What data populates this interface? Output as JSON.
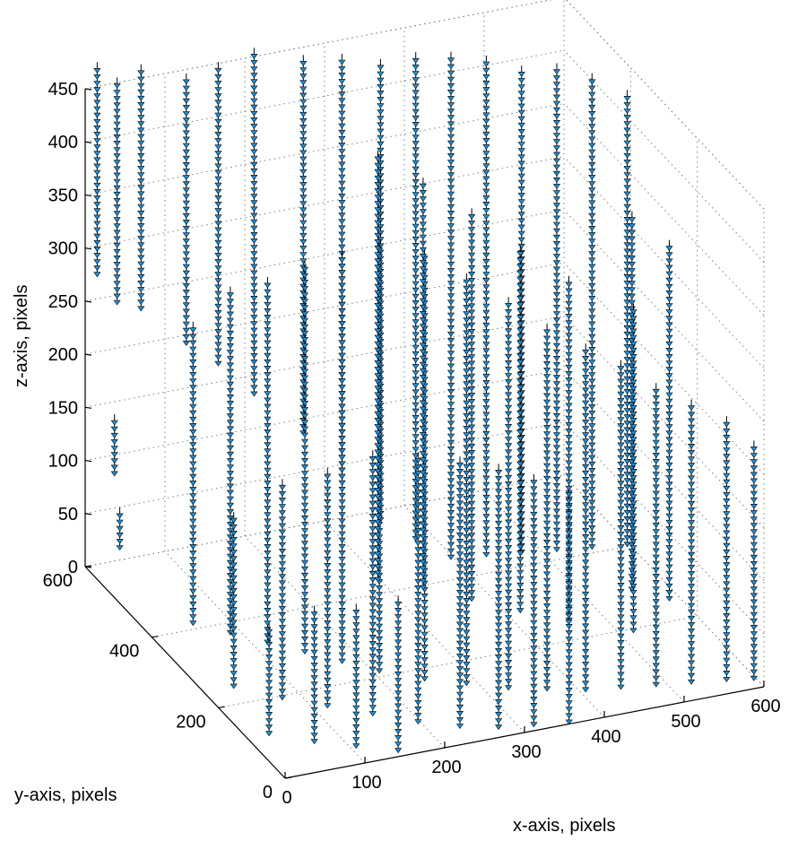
{
  "chart_data": {
    "type": "quiver3d",
    "title": "",
    "xlabel": "x-axis, pixels",
    "ylabel": "y-axis, pixels",
    "zlabel": "z-axis, pixels",
    "xlim": [
      0,
      600
    ],
    "ylim": [
      0,
      600
    ],
    "zlim": [
      0,
      450
    ],
    "xticks": [
      "0",
      "100",
      "200",
      "300",
      "400",
      "500",
      "600"
    ],
    "yticks": [
      "0",
      "200",
      "400",
      "600"
    ],
    "zticks": [
      "0",
      "50",
      "100",
      "150",
      "200",
      "250",
      "300",
      "350",
      "400",
      "450"
    ],
    "grid": true,
    "arrow_color": "#1f8fd8",
    "arrow_edge_color": "#000000",
    "trajectories": [
      {
        "x": 15,
        "y": 600,
        "z": [
          275,
          470
        ]
      },
      {
        "x": 40,
        "y": 600,
        "z": [
          245,
          450
        ]
      },
      {
        "x": 70,
        "y": 600,
        "z": [
          235,
          460
        ]
      },
      {
        "x": 110,
        "y": 560,
        "z": [
          210,
          460
        ]
      },
      {
        "x": 150,
        "y": 560,
        "z": [
          185,
          465
        ]
      },
      {
        "x": 195,
        "y": 560,
        "z": [
          150,
          470
        ]
      },
      {
        "x": 20,
        "y": 560,
        "z": [
          100,
          150
        ]
      },
      {
        "x": 10,
        "y": 520,
        "z": [
          45,
          75
        ]
      },
      {
        "x": 240,
        "y": 520,
        "z": [
          120,
          470
        ]
      },
      {
        "x": 280,
        "y": 500,
        "z": [
          80,
          470
        ]
      },
      {
        "x": 320,
        "y": 480,
        "z": [
          40,
          470
        ]
      },
      {
        "x": 360,
        "y": 470,
        "z": [
          20,
          470
        ]
      },
      {
        "x": 400,
        "y": 460,
        "z": [
          0,
          470
        ]
      },
      {
        "x": 440,
        "y": 450,
        "z": [
          0,
          465
        ]
      },
      {
        "x": 480,
        "y": 440,
        "z": [
          0,
          455
        ]
      },
      {
        "x": 520,
        "y": 430,
        "z": [
          0,
          450
        ]
      },
      {
        "x": 560,
        "y": 420,
        "z": [
          0,
          440
        ]
      },
      {
        "x": 600,
        "y": 410,
        "z": [
          0,
          420
        ]
      },
      {
        "x": 60,
        "y": 420,
        "z": [
          0,
          280
        ]
      },
      {
        "x": 90,
        "y": 380,
        "z": [
          0,
          320
        ]
      },
      {
        "x": 120,
        "y": 340,
        "z": [
          0,
          340
        ]
      },
      {
        "x": 150,
        "y": 300,
        "z": [
          0,
          360
        ]
      },
      {
        "x": 180,
        "y": 260,
        "z": [
          0,
          380
        ]
      },
      {
        "x": 210,
        "y": 220,
        "z": [
          0,
          400
        ]
      },
      {
        "x": 250,
        "y": 180,
        "z": [
          0,
          400
        ]
      },
      {
        "x": 290,
        "y": 150,
        "z": [
          0,
          380
        ]
      },
      {
        "x": 330,
        "y": 120,
        "z": [
          0,
          360
        ]
      },
      {
        "x": 370,
        "y": 100,
        "z": [
          0,
          340
        ]
      },
      {
        "x": 410,
        "y": 80,
        "z": [
          0,
          320
        ]
      },
      {
        "x": 450,
        "y": 70,
        "z": [
          0,
          300
        ]
      },
      {
        "x": 490,
        "y": 60,
        "z": [
          0,
          280
        ]
      },
      {
        "x": 530,
        "y": 50,
        "z": [
          0,
          260
        ]
      },
      {
        "x": 570,
        "y": 40,
        "z": [
          0,
          240
        ]
      },
      {
        "x": 600,
        "y": 30,
        "z": [
          0,
          220
        ]
      },
      {
        "x": 40,
        "y": 250,
        "z": [
          0,
          160
        ]
      },
      {
        "x": 80,
        "y": 200,
        "z": [
          0,
          200
        ]
      },
      {
        "x": 120,
        "y": 160,
        "z": [
          0,
          220
        ]
      },
      {
        "x": 160,
        "y": 120,
        "z": [
          0,
          240
        ]
      },
      {
        "x": 200,
        "y": 80,
        "z": [
          0,
          250
        ]
      },
      {
        "x": 240,
        "y": 50,
        "z": [
          0,
          250
        ]
      },
      {
        "x": 280,
        "y": 30,
        "z": [
          0,
          240
        ]
      },
      {
        "x": 320,
        "y": 20,
        "z": [
          0,
          230
        ]
      },
      {
        "x": 360,
        "y": 10,
        "z": [
          0,
          220
        ]
      },
      {
        "x": 30,
        "y": 120,
        "z": [
          0,
          100
        ]
      },
      {
        "x": 70,
        "y": 80,
        "z": [
          0,
          120
        ]
      },
      {
        "x": 110,
        "y": 50,
        "z": [
          0,
          130
        ]
      },
      {
        "x": 150,
        "y": 20,
        "z": [
          0,
          140
        ]
      },
      {
        "x": 560,
        "y": 300,
        "z": [
          0,
          350
        ]
      },
      {
        "x": 590,
        "y": 260,
        "z": [
          0,
          330
        ]
      },
      {
        "x": 520,
        "y": 200,
        "z": [
          0,
          300
        ]
      },
      {
        "x": 460,
        "y": 250,
        "z": [
          0,
          320
        ]
      },
      {
        "x": 420,
        "y": 300,
        "z": [
          0,
          340
        ]
      },
      {
        "x": 380,
        "y": 350,
        "z": [
          0,
          360
        ]
      },
      {
        "x": 340,
        "y": 400,
        "z": [
          0,
          380
        ]
      },
      {
        "x": 300,
        "y": 440,
        "z": [
          0,
          400
        ]
      }
    ]
  }
}
